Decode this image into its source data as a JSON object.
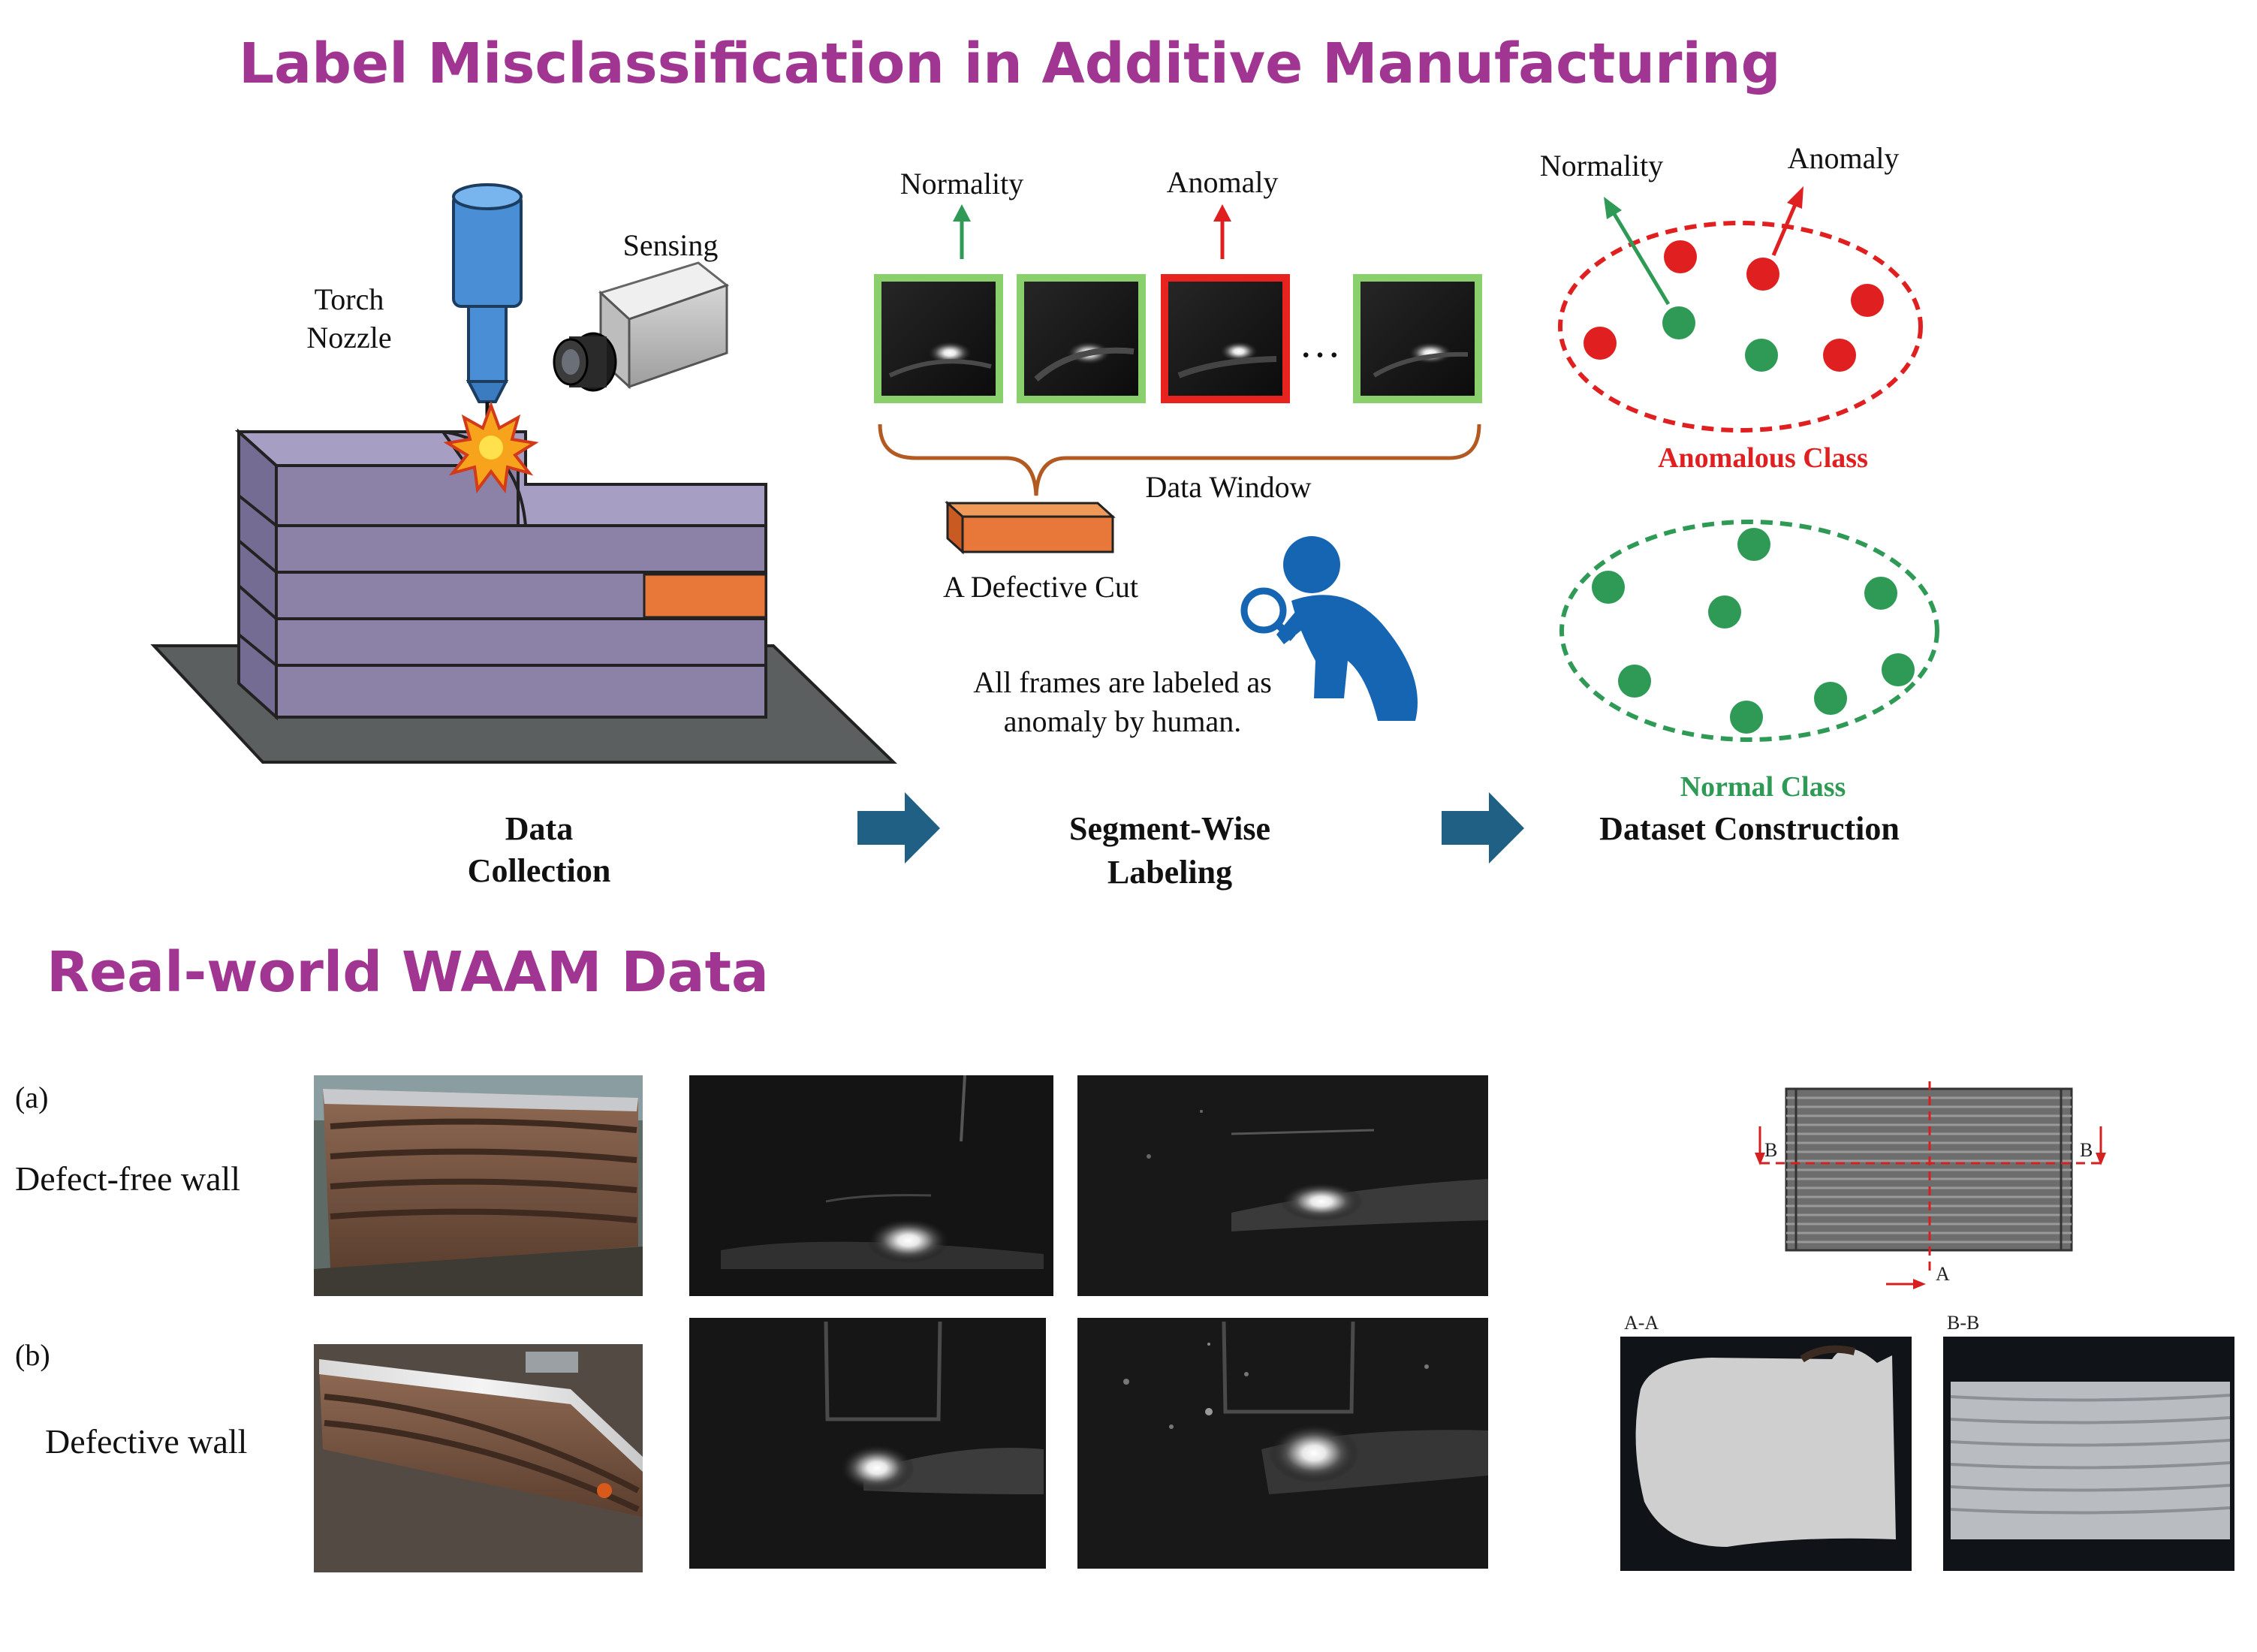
{
  "titles": {
    "top": "Label Misclassification in Additive Manufacturing",
    "bottom": "Real-world WAAM Data"
  },
  "data_collection": {
    "torch_label_1": "Torch",
    "torch_label_2": "Nozzle",
    "sensing_label": "Sensing",
    "caption_1": "Data",
    "caption_2": "Collection"
  },
  "segment_labeling": {
    "normality_label": "Normality",
    "anomaly_label": "Anomaly",
    "ellipsis": "…",
    "data_window_label": "Data Window",
    "defective_cut_label": "A Defective Cut",
    "human_note_1": "All frames are labeled as",
    "human_note_2": "anomaly by human.",
    "caption_1": "Segment-Wise",
    "caption_2": "Labeling"
  },
  "dataset_construction": {
    "normality_label": "Normality",
    "anomaly_label": "Anomaly",
    "anomalous_class_label": "Anomalous Class",
    "normal_class_label": "Normal Class",
    "caption": "Dataset Construction"
  },
  "waam": {
    "row_a_tag": "(a)",
    "row_a_label": "Defect-free wall",
    "row_b_tag": "(b)",
    "row_b_label": "Defective wall",
    "section_b_left": "B",
    "section_b_right": "B",
    "section_a": "A",
    "cross_section_a": "A-A",
    "cross_section_b": "B-B"
  },
  "colors": {
    "title": "#a03592",
    "normal_green": "#2e9a55",
    "anomaly_red": "#e02020",
    "arrow_blue": "#1f6084",
    "wall_purple": "#8c82a8",
    "defect_orange": "#e8773a",
    "person_blue": "#1565b3"
  },
  "icons": {
    "torch": "torch-nozzle-icon",
    "camera": "camera-icon",
    "spark": "spark-icon",
    "person": "person-magnifier-icon"
  }
}
